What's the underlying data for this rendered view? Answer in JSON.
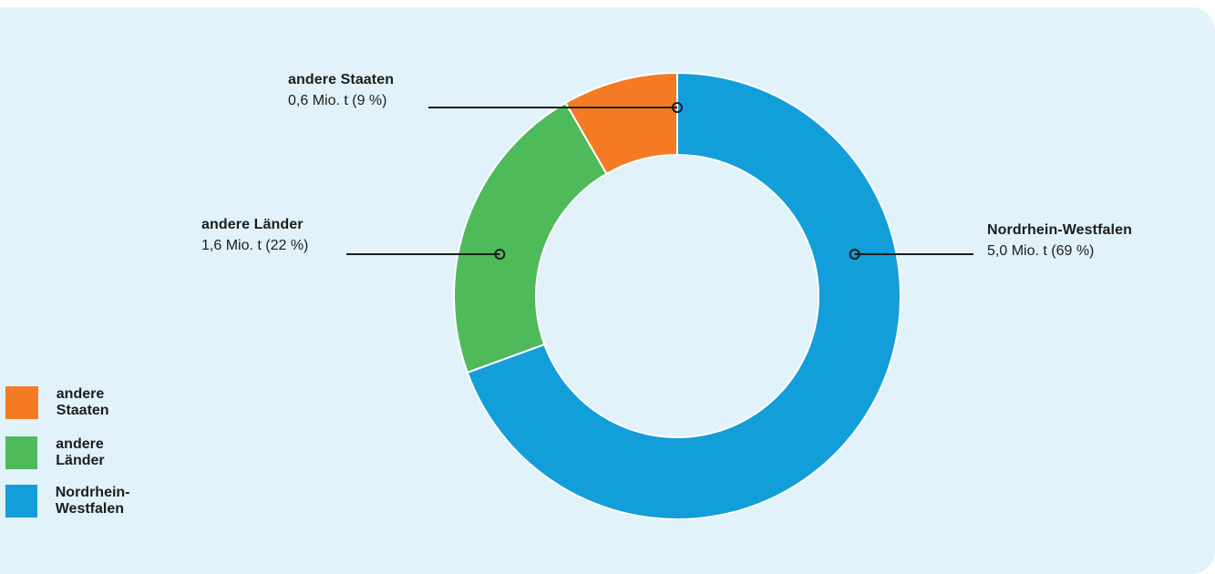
{
  "chart_data": {
    "type": "pie",
    "variant": "donut",
    "unit": "Mio. t",
    "series": [
      {
        "name": "Nordrhein-Westfalen",
        "value": 5.0,
        "value_label": "5,0 Mio. t (69 %)",
        "percent": 69,
        "color": "#129ed9"
      },
      {
        "name": "andere Länder",
        "value": 1.6,
        "value_label": "1,6 Mio. t (22 %)",
        "percent": 22,
        "color": "#4fba5a"
      },
      {
        "name": "andere Staaten",
        "value": 0.6,
        "value_label": "0,6 Mio. t (9 %)",
        "percent": 9,
        "color": "#f47b23"
      }
    ],
    "legend": {
      "placement": "bottom-left",
      "order": [
        "andere Staaten",
        "andere Länder",
        "Nordrhein-Westfalen"
      ]
    }
  },
  "colors": {
    "background": "#e1f2fa",
    "leader_line": "#1d1d1b"
  }
}
